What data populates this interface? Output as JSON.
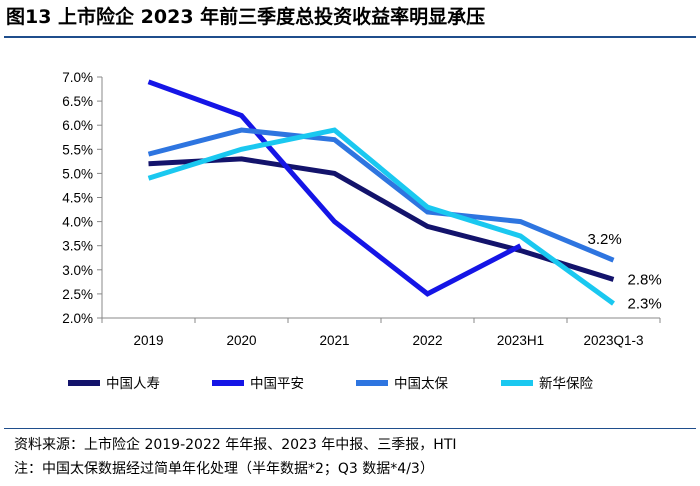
{
  "title": "图13 上市险企 2023 年前三季度总投资收益率明显承压",
  "source_note": "资料来源：上市险企 2019-2022 年年报、2023 年中报、三季报，HTI",
  "footnote": "注：中国太保数据经过简单年化处理（半年数据*2；Q3 数据*4/3）",
  "chart_data": {
    "type": "line",
    "title": "",
    "xlabel": "",
    "ylabel": "",
    "categories": [
      "2019",
      "2020",
      "2021",
      "2022",
      "2023H1",
      "2023Q1-3"
    ],
    "ylim": [
      0.02,
      0.07
    ],
    "yticks": [
      0.02,
      0.025,
      0.03,
      0.035,
      0.04,
      0.045,
      0.05,
      0.055,
      0.06,
      0.065,
      0.07
    ],
    "ytick_labels": [
      "2.0%",
      "2.5%",
      "3.0%",
      "3.5%",
      "4.0%",
      "4.5%",
      "5.0%",
      "5.5%",
      "6.0%",
      "6.5%",
      "7.0%"
    ],
    "grid": false,
    "legend_position": "bottom",
    "series": [
      {
        "name": "中国人寿",
        "color": "#13136b",
        "values": [
          0.052,
          0.053,
          0.05,
          0.039,
          0.034,
          0.028
        ]
      },
      {
        "name": "中国平安",
        "color": "#1515e6",
        "values": [
          0.069,
          0.062,
          0.04,
          0.025,
          0.035,
          null
        ]
      },
      {
        "name": "中国太保",
        "color": "#2e75e0",
        "values": [
          0.054,
          0.059,
          0.057,
          0.042,
          0.04,
          0.032
        ]
      },
      {
        "name": "新华保险",
        "color": "#1ac8f0",
        "values": [
          0.049,
          0.055,
          0.059,
          0.043,
          0.037,
          0.023
        ]
      }
    ],
    "annotations": [
      {
        "text": "3.2%",
        "series": "中国太保",
        "category": "2023Q1-3"
      },
      {
        "text": "2.8%",
        "series": "中国人寿",
        "category": "2023Q1-3"
      },
      {
        "text": "2.3%",
        "series": "新华保险",
        "category": "2023Q1-3"
      }
    ]
  }
}
